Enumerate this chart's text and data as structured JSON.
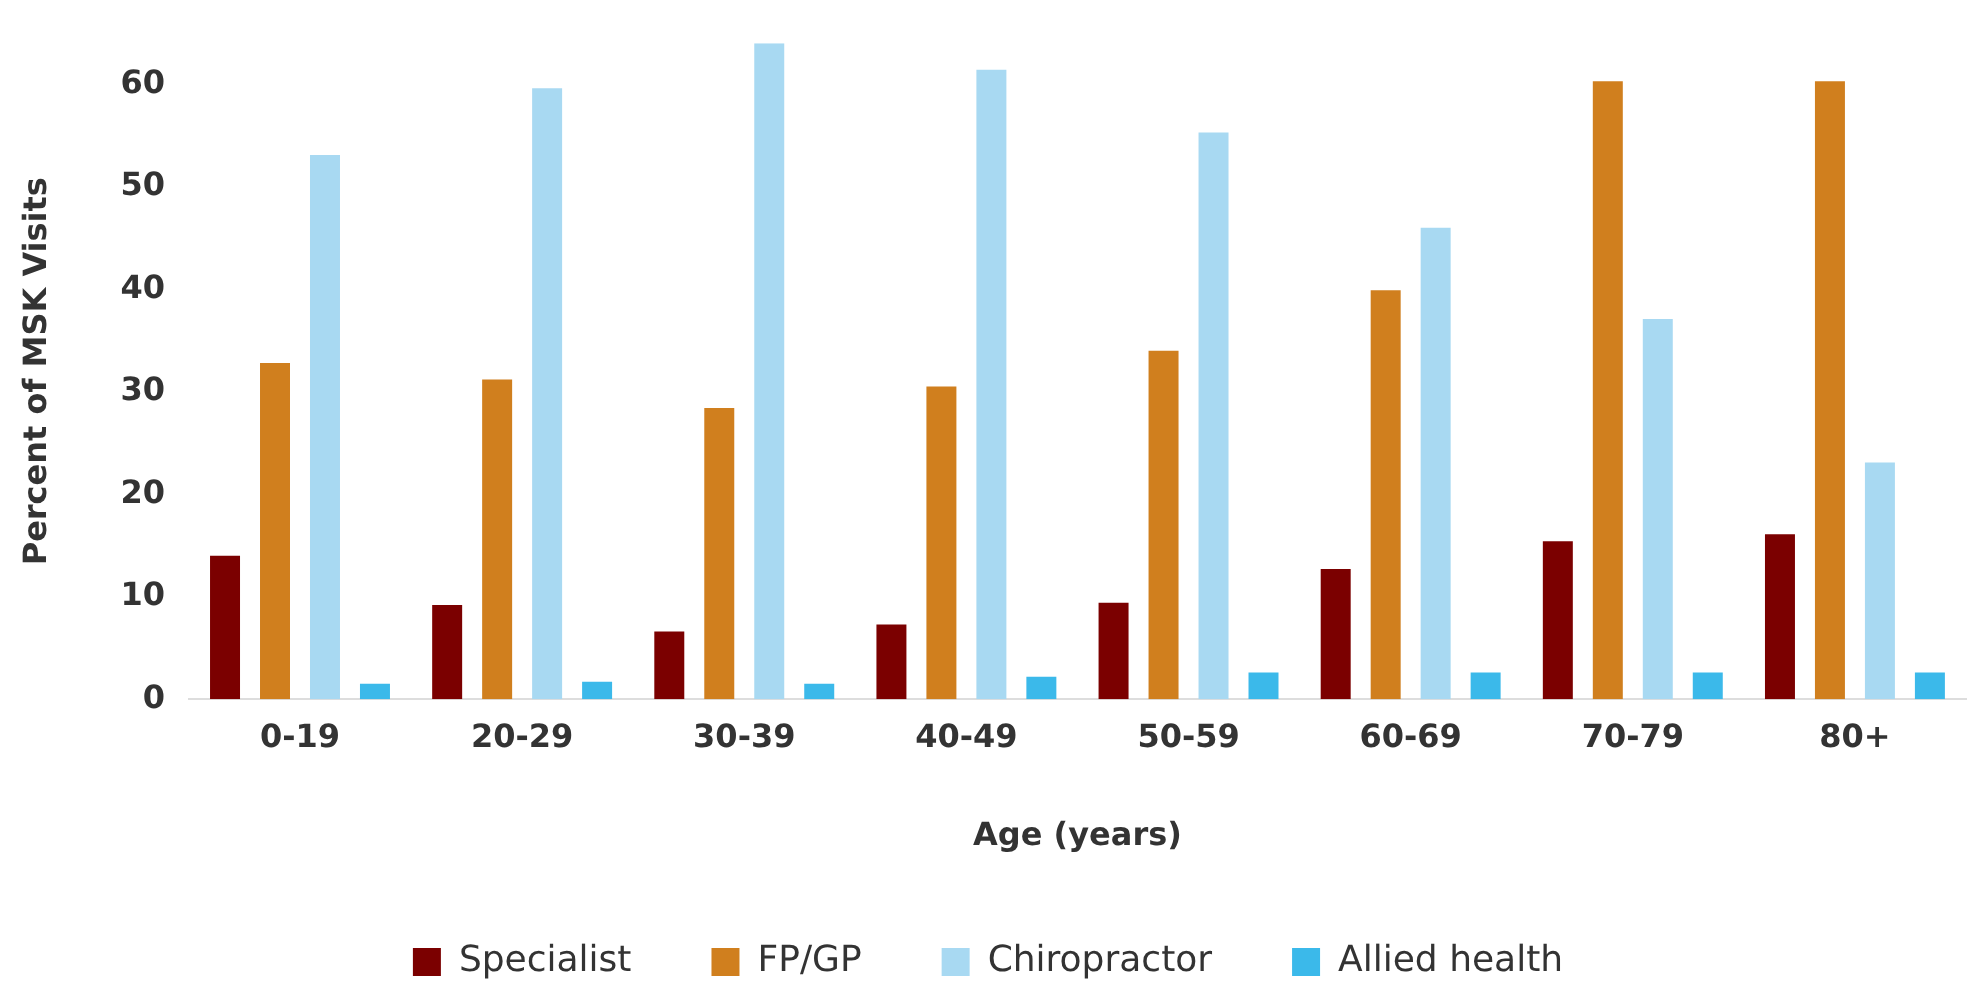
{
  "chart_data": {
    "type": "bar",
    "xlabel": "Age (years)",
    "ylabel": "Percent of MSK Visits",
    "categories": [
      "0-19",
      "20-29",
      "30-39",
      "40-49",
      "50-59",
      "60-69",
      "70-79",
      "80+"
    ],
    "series": [
      {
        "name": "Specialist",
        "color": "#7b0000",
        "values": [
          14,
          9.2,
          6.6,
          7.3,
          9.4,
          12.7,
          15.4,
          16.1
        ]
      },
      {
        "name": "FP/GP",
        "color": "#d07f1e",
        "values": [
          32.8,
          31.2,
          28.4,
          30.5,
          34,
          39.9,
          60.3,
          60.3
        ]
      },
      {
        "name": "Chiropractor",
        "color": "#a8d9f2",
        "values": [
          53.1,
          59.6,
          64,
          61.4,
          55.3,
          46,
          37.1,
          23.1
        ]
      },
      {
        "name": "Allied health",
        "color": "#3bb9ea",
        "values": [
          1.5,
          1.7,
          1.5,
          2.2,
          2.6,
          2.6,
          2.6,
          2.6
        ]
      }
    ],
    "ylim": [
      0,
      64
    ],
    "yticks": [
      0,
      10,
      20,
      30,
      40,
      50,
      60
    ],
    "grid": false,
    "legend": "bottom"
  }
}
